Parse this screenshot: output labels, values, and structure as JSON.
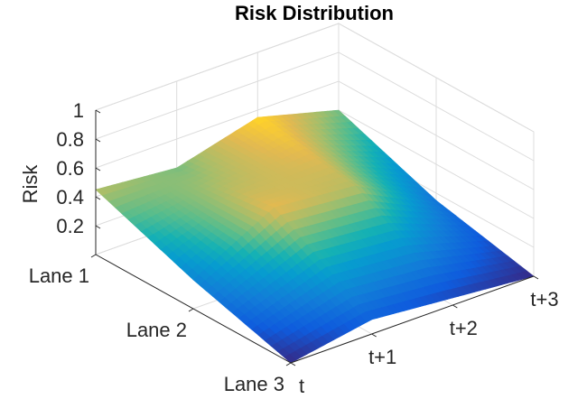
{
  "chart_data": {
    "type": "surface",
    "title": "Risk Distribution",
    "xlabel": "",
    "ylabel": "",
    "zlabel": "Risk",
    "x_categories": [
      "t",
      "t+1",
      "t+2",
      "t+3"
    ],
    "y_categories": [
      "Lane 1",
      "Lane 2",
      "Lane 3"
    ],
    "z_ticks": [
      "0.2",
      "0.4",
      "0.6",
      "0.8",
      "1"
    ],
    "zlim": [
      0,
      1
    ],
    "grid": true,
    "colormap": "parula",
    "z": [
      [
        0.45,
        0.4,
        0.55,
        0.4
      ],
      [
        0.2,
        0.5,
        0.45,
        0.15
      ],
      [
        0.0,
        0.1,
        0.05,
        0.0
      ]
    ]
  }
}
